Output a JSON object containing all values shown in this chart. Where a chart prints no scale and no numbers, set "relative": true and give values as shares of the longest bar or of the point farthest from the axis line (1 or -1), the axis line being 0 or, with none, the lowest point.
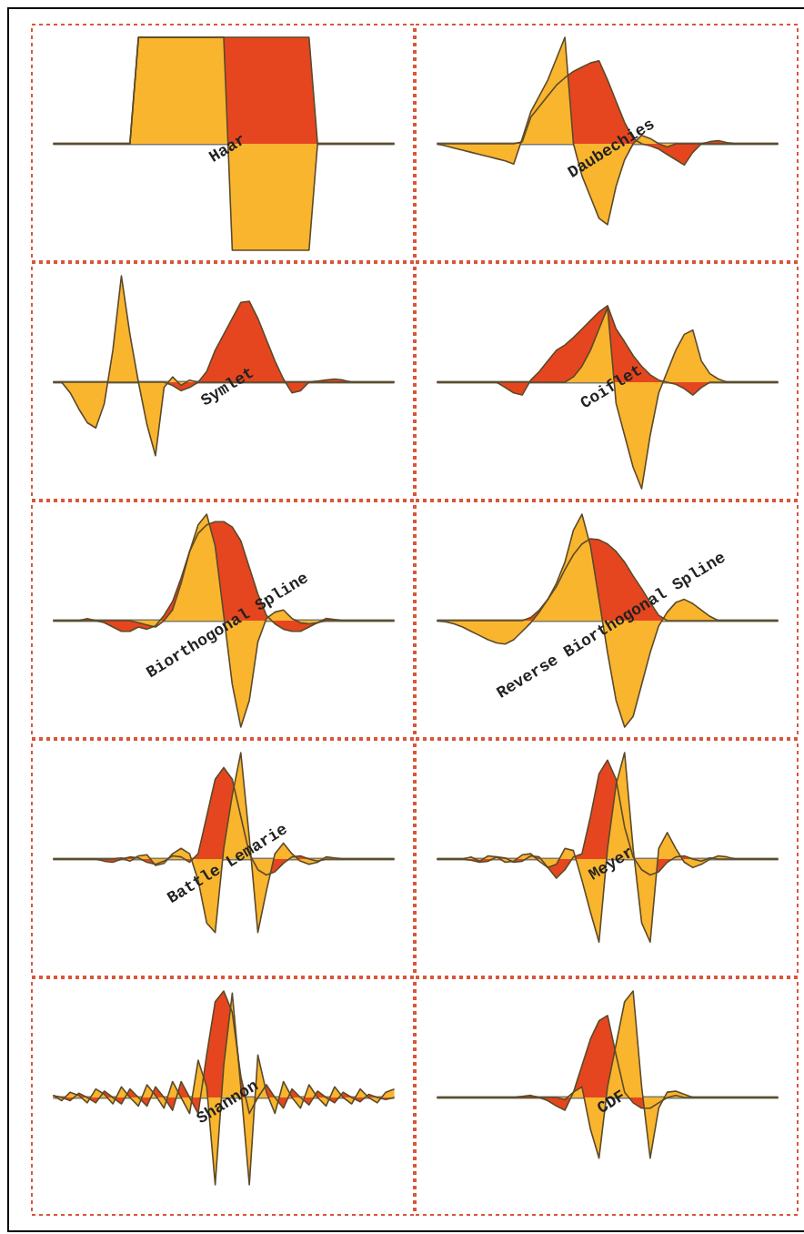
{
  "chart_data": [
    {
      "type": "area",
      "title": "Haar",
      "relative": true,
      "categories": [
        null,
        null,
        null,
        null,
        null,
        null,
        null,
        null,
        null,
        null,
        null,
        null,
        null,
        null,
        null,
        null,
        null,
        null,
        null,
        null,
        null,
        null,
        null,
        null,
        null,
        null,
        null,
        null,
        null,
        null,
        null,
        null,
        null,
        null,
        null,
        null,
        null,
        null,
        null,
        null,
        null
      ],
      "series": [
        {
          "color": "#e5461f",
          "values": [
            0,
            0,
            0,
            0,
            0,
            0,
            0,
            0,
            0,
            0,
            1,
            1,
            1,
            1,
            1,
            1,
            1,
            1,
            1,
            1,
            1,
            1,
            1,
            1,
            1,
            1,
            1,
            1,
            1,
            1,
            1,
            0,
            0,
            0,
            0,
            0,
            0,
            0,
            0,
            0,
            0
          ]
        },
        {
          "color": "#f9b52e",
          "values": [
            0,
            0,
            0,
            0,
            0,
            0,
            0,
            0,
            0,
            0,
            1,
            1,
            1,
            1,
            1,
            1,
            1,
            1,
            1,
            1,
            1,
            -1,
            -1,
            -1,
            -1,
            -1,
            -1,
            -1,
            -1,
            -1,
            -1,
            0,
            0,
            0,
            0,
            0,
            0,
            0,
            0,
            0,
            0
          ]
        }
      ]
    },
    {
      "type": "area",
      "title": "Daubechies",
      "relative": true,
      "categories": [
        null,
        null,
        null,
        null,
        null,
        null,
        null,
        null,
        null,
        null,
        null,
        null,
        null,
        null,
        null,
        null,
        null,
        null,
        null,
        null,
        null,
        null,
        null,
        null,
        null,
        null,
        null,
        null,
        null,
        null,
        null,
        null,
        null,
        null,
        null,
        null,
        null,
        null,
        null,
        null,
        null
      ],
      "series": [
        {
          "color": "#e5461f",
          "values": [
            0,
            0,
            0,
            0,
            0,
            0,
            0,
            0,
            0,
            0,
            0.02,
            0.25,
            0.35,
            0.45,
            0.55,
            0.62,
            0.68,
            0.72,
            0.76,
            0.78,
            0.6,
            0.4,
            0.2,
            0.05,
            0,
            -0.02,
            -0.05,
            -0.1,
            -0.15,
            -0.2,
            -0.08,
            0,
            0.02,
            0.03,
            0.01,
            0,
            0,
            0,
            0,
            0,
            0
          ]
        },
        {
          "color": "#f9b52e",
          "values": [
            0,
            -0.02,
            -0.04,
            -0.06,
            -0.08,
            -0.1,
            -0.12,
            -0.14,
            -0.16,
            -0.19,
            0.05,
            0.3,
            0.45,
            0.6,
            0.8,
            1,
            0,
            -0.3,
            -0.5,
            -0.7,
            -0.76,
            -0.4,
            -0.15,
            0,
            0.08,
            0.05,
            0,
            -0.03,
            0,
            0,
            0,
            0,
            0,
            0,
            0,
            0,
            0,
            0,
            0,
            0,
            0
          ]
        }
      ]
    },
    {
      "type": "area",
      "title": "Symlet",
      "relative": true,
      "categories": [
        null,
        null,
        null,
        null,
        null,
        null,
        null,
        null,
        null,
        null,
        null,
        null,
        null,
        null,
        null,
        null,
        null,
        null,
        null,
        null,
        null,
        null,
        null,
        null,
        null,
        null,
        null,
        null,
        null,
        null,
        null,
        null,
        null,
        null,
        null,
        null,
        null,
        null,
        null,
        null,
        null
      ],
      "series": [
        {
          "color": "#e5461f",
          "values": [
            0,
            0,
            0,
            0,
            0,
            0,
            0,
            0,
            0,
            0,
            0,
            0,
            0,
            0,
            -0.03,
            -0.08,
            -0.05,
            0,
            0.1,
            0.3,
            0.45,
            0.6,
            0.75,
            0.76,
            0.6,
            0.4,
            0.2,
            0.03,
            -0.1,
            -0.08,
            0,
            0.01,
            0.02,
            0.03,
            0.02,
            0,
            0,
            0,
            0,
            0,
            0
          ]
        },
        {
          "color": "#f9b52e",
          "values": [
            0,
            0,
            -0.1,
            -0.25,
            -0.38,
            -0.43,
            -0.2,
            0.3,
            1,
            0.45,
            0,
            -0.4,
            -0.69,
            -0.05,
            0.05,
            -0.03,
            0.02,
            0,
            0,
            0,
            0,
            0,
            0,
            0,
            0,
            0,
            0,
            0,
            0,
            0,
            0,
            0,
            0,
            0,
            0,
            0,
            0,
            0,
            0,
            0,
            0
          ]
        }
      ]
    },
    {
      "type": "area",
      "title": "Coiflet",
      "relative": true,
      "categories": [
        null,
        null,
        null,
        null,
        null,
        null,
        null,
        null,
        null,
        null,
        null,
        null,
        null,
        null,
        null,
        null,
        null,
        null,
        null,
        null,
        null,
        null,
        null,
        null,
        null,
        null,
        null,
        null,
        null,
        null,
        null,
        null,
        null,
        null,
        null,
        null,
        null,
        null,
        null,
        null,
        null
      ],
      "series": [
        {
          "color": "#e5461f",
          "values": [
            0,
            0,
            0,
            0,
            0,
            0,
            0,
            0,
            -0.05,
            -0.1,
            -0.12,
            0.02,
            0.1,
            0.2,
            0.3,
            0.35,
            0.42,
            0.5,
            0.58,
            0.66,
            0.72,
            0.5,
            0.38,
            0.25,
            0.15,
            0.07,
            0.02,
            0,
            -0.02,
            -0.06,
            -0.12,
            -0.05,
            0,
            0,
            0,
            0,
            0,
            0,
            0,
            0,
            0
          ]
        },
        {
          "color": "#f9b52e",
          "values": [
            0,
            0,
            0,
            0,
            0,
            0,
            0,
            0,
            0,
            0,
            0,
            0,
            0,
            0,
            0,
            0,
            0.05,
            0.15,
            0.3,
            0.5,
            0.7,
            -0.2,
            -0.5,
            -0.8,
            -1,
            -0.5,
            -0.1,
            0.1,
            0.3,
            0.45,
            0.49,
            0.2,
            0.08,
            0.03,
            0,
            0,
            0,
            0,
            0,
            0,
            0
          ]
        }
      ]
    },
    {
      "type": "area",
      "title": "Biorthogonal Spline",
      "relative": true,
      "categories": [
        null,
        null,
        null,
        null,
        null,
        null,
        null,
        null,
        null,
        null,
        null,
        null,
        null,
        null,
        null,
        null,
        null,
        null,
        null,
        null,
        null,
        null,
        null,
        null,
        null,
        null,
        null,
        null,
        null,
        null,
        null,
        null,
        null,
        null,
        null,
        null,
        null,
        null,
        null,
        null,
        null
      ],
      "series": [
        {
          "color": "#e5461f",
          "values": [
            0,
            0,
            0,
            0,
            0.02,
            0,
            -0.02,
            -0.06,
            -0.1,
            -0.1,
            -0.06,
            -0.08,
            -0.05,
            0.05,
            0.18,
            0.4,
            0.65,
            0.82,
            0.9,
            0.93,
            0.93,
            0.88,
            0.75,
            0.5,
            0.25,
            0.05,
            -0.03,
            -0.08,
            -0.1,
            -0.1,
            -0.06,
            -0.02,
            0.02,
            0.01,
            0,
            0,
            0,
            0,
            0,
            0,
            0
          ]
        },
        {
          "color": "#f9b52e",
          "values": [
            0,
            0,
            0,
            0,
            0,
            0,
            0,
            0,
            0,
            0,
            -0.02,
            -0.04,
            -0.06,
            0,
            0.1,
            0.35,
            0.65,
            0.9,
            1,
            0.7,
            0.05,
            -0.6,
            -1,
            -0.75,
            -0.2,
            0.02,
            0.08,
            0.1,
            0.02,
            -0.02,
            -0.03,
            -0.02,
            0,
            0,
            0,
            0,
            0,
            0,
            0,
            0,
            0
          ]
        }
      ]
    },
    {
      "type": "area",
      "title": "Reverse Biorthogonal Spline",
      "relative": true,
      "categories": [
        null,
        null,
        null,
        null,
        null,
        null,
        null,
        null,
        null,
        null,
        null,
        null,
        null,
        null,
        null,
        null,
        null,
        null,
        null,
        null,
        null,
        null,
        null,
        null,
        null,
        null,
        null,
        null,
        null,
        null,
        null,
        null,
        null,
        null,
        null,
        null,
        null,
        null,
        null,
        null,
        null
      ],
      "series": [
        {
          "color": "#e5461f",
          "values": [
            0,
            0,
            0,
            0,
            0,
            0,
            0,
            0,
            0,
            0,
            0,
            0.03,
            0.1,
            0.2,
            0.32,
            0.48,
            0.62,
            0.72,
            0.77,
            0.76,
            0.72,
            0.65,
            0.55,
            0.42,
            0.3,
            0.17,
            0.05,
            0,
            0,
            0,
            0,
            0,
            0,
            0,
            0,
            0,
            0,
            0,
            0,
            0,
            0
          ]
        },
        {
          "color": "#f9b52e",
          "values": [
            0,
            -0.01,
            -0.03,
            -0.06,
            -0.1,
            -0.14,
            -0.18,
            -0.21,
            -0.22,
            -0.18,
            -0.1,
            -0.02,
            0.08,
            0.2,
            0.35,
            0.55,
            0.85,
            1,
            0.7,
            0.2,
            -0.3,
            -0.75,
            -1,
            -0.9,
            -0.6,
            -0.3,
            -0.05,
            0.08,
            0.17,
            0.2,
            0.16,
            0.1,
            0.04,
            0,
            0,
            0,
            0,
            0,
            0,
            0,
            0
          ]
        }
      ]
    },
    {
      "type": "area",
      "title": "Battle Lemarie",
      "relative": true,
      "categories": [
        null,
        null,
        null,
        null,
        null,
        null,
        null,
        null,
        null,
        null,
        null,
        null,
        null,
        null,
        null,
        null,
        null,
        null,
        null,
        null,
        null,
        null,
        null,
        null,
        null,
        null,
        null,
        null,
        null,
        null,
        null,
        null,
        null,
        null,
        null,
        null,
        null,
        null,
        null,
        null,
        null
      ],
      "series": [
        {
          "color": "#e5461f",
          "values": [
            0,
            0,
            0,
            0,
            0,
            0,
            -0.02,
            -0.03,
            0,
            0.02,
            0.01,
            -0.03,
            -0.05,
            -0.02,
            0.03,
            0.02,
            -0.03,
            0.05,
            0.4,
            0.75,
            0.86,
            0.75,
            0.4,
            0.05,
            -0.1,
            -0.15,
            -0.12,
            -0.04,
            0.02,
            0.03,
            0,
            -0.02,
            0,
            0,
            0,
            0,
            0,
            0,
            0,
            0,
            0
          ]
        },
        {
          "color": "#f9b52e",
          "values": [
            0,
            0,
            0,
            0,
            0,
            0,
            0,
            0,
            0.01,
            -0.02,
            0.03,
            0.04,
            -0.06,
            -0.04,
            0.05,
            0.1,
            0.05,
            -0.2,
            -0.6,
            -0.69,
            0.1,
            0.6,
            1,
            0.2,
            -0.69,
            -0.3,
            0.05,
            0.15,
            0.05,
            -0.02,
            -0.05,
            -0.03,
            0.02,
            0.01,
            0,
            0,
            0,
            0,
            0,
            0,
            0
          ]
        }
      ]
    },
    {
      "type": "area",
      "title": "Meyer",
      "relative": true,
      "categories": [
        null,
        null,
        null,
        null,
        null,
        null,
        null,
        null,
        null,
        null,
        null,
        null,
        null,
        null,
        null,
        null,
        null,
        null,
        null,
        null,
        null,
        null,
        null,
        null,
        null,
        null,
        null,
        null,
        null,
        null,
        null,
        null,
        null,
        null,
        null,
        null,
        null,
        null,
        null,
        null,
        null
      ],
      "series": [
        {
          "color": "#e5461f",
          "values": [
            0,
            0,
            0,
            0,
            -0.01,
            -0.03,
            -0.02,
            0.02,
            0.01,
            -0.03,
            -0.02,
            0.03,
            0.02,
            -0.08,
            -0.18,
            -0.1,
            0.02,
            0.05,
            0.4,
            0.8,
            0.93,
            0.75,
            0.3,
            0.02,
            -0.1,
            -0.15,
            -0.12,
            -0.03,
            0.02,
            0.03,
            0,
            -0.02,
            0.01,
            0,
            0,
            0,
            0,
            0,
            0,
            0,
            0
          ]
        },
        {
          "color": "#f9b52e",
          "values": [
            0,
            0,
            0,
            0,
            0.02,
            -0.02,
            0.03,
            0.02,
            -0.03,
            -0.02,
            0.04,
            0.05,
            -0.02,
            -0.08,
            -0.05,
            0.1,
            0.08,
            -0.2,
            -0.5,
            -0.78,
            0.1,
            0.7,
            1,
            0.1,
            -0.6,
            -0.78,
            0.1,
            0.25,
            0.1,
            -0.03,
            -0.08,
            -0.05,
            0,
            0.03,
            0.02,
            0,
            0,
            0,
            0,
            0,
            0
          ]
        }
      ]
    },
    {
      "type": "area",
      "title": "Shannon",
      "relative": true,
      "categories": [
        null,
        null,
        null,
        null,
        null,
        null,
        null,
        null,
        null,
        null,
        null,
        null,
        null,
        null,
        null,
        null,
        null,
        null,
        null,
        null,
        null,
        null,
        null,
        null,
        null,
        null,
        null,
        null,
        null,
        null,
        null,
        null,
        null,
        null,
        null,
        null,
        null,
        null,
        null,
        null,
        null
      ],
      "series": [
        {
          "color": "#e5461f",
          "values": [
            0.02,
            0,
            -0.03,
            0.04,
            0,
            -0.05,
            0.06,
            0,
            -0.06,
            0.08,
            0,
            -0.08,
            0.1,
            0,
            -0.12,
            0.15,
            0,
            -0.15,
            0.4,
            0.9,
            1,
            0.8,
            0.2,
            -0.15,
            0,
            0.12,
            0,
            -0.1,
            0.08,
            0,
            -0.07,
            0.06,
            0,
            -0.05,
            0.05,
            0,
            -0.04,
            0.03,
            0,
            -0.02,
            0
          ]
        },
        {
          "color": "#f9b52e",
          "values": [
            0.02,
            -0.03,
            0.05,
            0.02,
            -0.05,
            0.08,
            0.03,
            -0.06,
            0.1,
            0,
            -0.08,
            0.12,
            0.02,
            -0.1,
            0.15,
            0,
            -0.15,
            0.35,
            0.1,
            -0.82,
            0.3,
            0.98,
            0.1,
            -0.82,
            0.4,
            0.05,
            -0.15,
            0.15,
            0,
            -0.1,
            0.12,
            0,
            -0.08,
            0.1,
            0,
            -0.06,
            0.08,
            0,
            -0.05,
            0.05,
            0.08
          ]
        }
      ]
    },
    {
      "type": "area",
      "title": "CDF",
      "relative": true,
      "categories": [
        null,
        null,
        null,
        null,
        null,
        null,
        null,
        null,
        null,
        null,
        null,
        null,
        null,
        null,
        null,
        null,
        null,
        null,
        null,
        null,
        null,
        null,
        null,
        null,
        null,
        null,
        null,
        null,
        null,
        null,
        null,
        null,
        null,
        null,
        null,
        null,
        null,
        null,
        null,
        null,
        null
      ],
      "series": [
        {
          "color": "#e5461f",
          "values": [
            0,
            0,
            0,
            0,
            0,
            0,
            0,
            0,
            0,
            0,
            0.01,
            0.02,
            0,
            -0.03,
            -0.08,
            -0.12,
            0.05,
            0.3,
            0.55,
            0.72,
            0.77,
            0.4,
            0.05,
            -0.05,
            -0.1,
            -0.1,
            -0.05,
            0,
            0.02,
            0,
            0,
            0,
            0,
            0,
            0,
            0,
            0,
            0,
            0,
            0,
            0
          ]
        },
        {
          "color": "#f9b52e",
          "values": [
            0,
            0,
            0,
            0,
            0,
            0,
            0,
            0,
            0,
            0,
            0,
            0,
            0,
            0,
            0,
            -0.02,
            0.05,
            0.1,
            -0.3,
            -0.57,
            0.1,
            0.5,
            0.9,
            1,
            0.1,
            -0.57,
            -0.1,
            0.05,
            0.06,
            0.03,
            0,
            0,
            0,
            0,
            0,
            0,
            0,
            0,
            0,
            0,
            0
          ]
        }
      ]
    }
  ]
}
